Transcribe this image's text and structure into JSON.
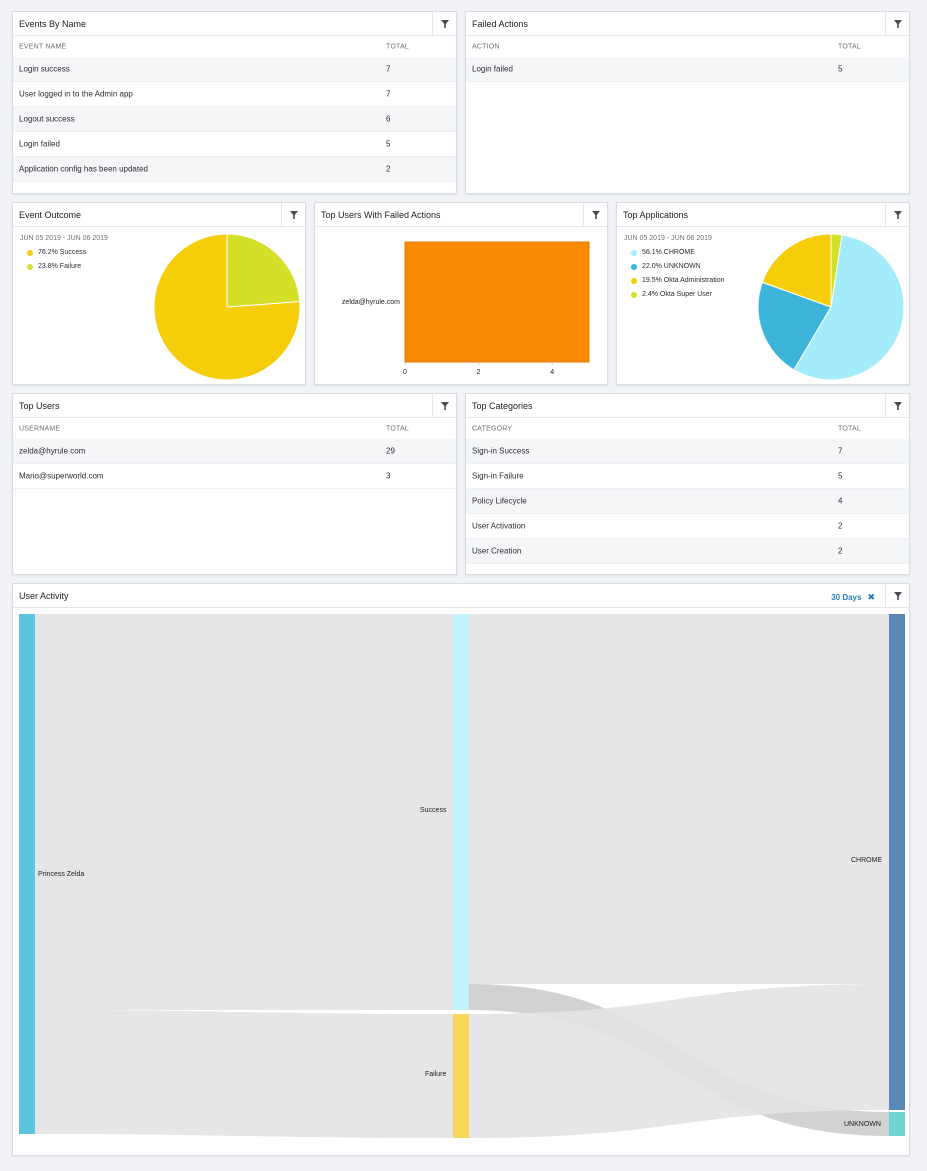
{
  "events_by_name": {
    "title": "Events By Name",
    "columns": [
      "EVENT NAME",
      "TOTAL"
    ],
    "rows": [
      {
        "name": "Login success",
        "total": "7"
      },
      {
        "name": "User logged in to the Admin app",
        "total": "7"
      },
      {
        "name": "Logout success",
        "total": "6"
      },
      {
        "name": "Login failed",
        "total": "5"
      },
      {
        "name": "Application config has been updated",
        "total": "2"
      }
    ]
  },
  "failed_actions": {
    "title": "Failed Actions",
    "columns": [
      "ACTION",
      "TOTAL"
    ],
    "rows": [
      {
        "name": "Login failed",
        "total": "5"
      }
    ]
  },
  "event_outcome": {
    "title": "Event Outcome",
    "date_range": "JUN 05 2019 - JUN 06 2019",
    "legend": [
      {
        "label": "76.2% Success",
        "color": "#f5cd08"
      },
      {
        "label": "23.8% Failure",
        "color": "#d4df28"
      }
    ],
    "chart_data": {
      "type": "pie",
      "labels": [
        "Success",
        "Failure"
      ],
      "values": [
        76.2,
        23.8
      ],
      "colors": [
        "#f5cd08",
        "#d4df28"
      ]
    }
  },
  "top_failed_users": {
    "title": "Top Users With Failed Actions",
    "chart_data": {
      "type": "bar",
      "orientation": "horizontal",
      "categories": [
        "zelda@hyrule.com"
      ],
      "values": [
        5
      ],
      "xlim": [
        0,
        5
      ],
      "xticks": [
        "0",
        "2",
        "4"
      ],
      "color": "#f78a02"
    }
  },
  "top_applications": {
    "title": "Top Applications",
    "date_range": "JUN 05 2019 - JUN 06 2019",
    "legend": [
      {
        "label": "56.1% CHROME",
        "color": "#a4ecfb"
      },
      {
        "label": "22.0% UNKNOWN",
        "color": "#3db4d9"
      },
      {
        "label": "19.5% Okta Administration",
        "color": "#f5cd08"
      },
      {
        "label": "2.4% Okta Super User",
        "color": "#d4df28"
      }
    ],
    "chart_data": {
      "type": "pie",
      "labels": [
        "CHROME",
        "UNKNOWN",
        "Okta Administration",
        "Okta Super User"
      ],
      "values": [
        56.1,
        22.0,
        19.5,
        2.4
      ],
      "colors": [
        "#a4ecfb",
        "#3db4d9",
        "#f5cd08",
        "#d4df28"
      ]
    }
  },
  "top_users": {
    "title": "Top Users",
    "columns": [
      "USERNAME",
      "TOTAL"
    ],
    "rows": [
      {
        "name": "zelda@hyrule.com",
        "total": "29"
      },
      {
        "name": "Mario@superworld.com",
        "total": "3"
      }
    ]
  },
  "top_categories": {
    "title": "Top Categories",
    "columns": [
      "CATEGORY",
      "TOTAL"
    ],
    "rows": [
      {
        "name": "Sign-in Success",
        "total": "7"
      },
      {
        "name": "Sign-in Failure",
        "total": "5"
      },
      {
        "name": "Policy Lifecycle",
        "total": "4"
      },
      {
        "name": "User Activation",
        "total": "2"
      },
      {
        "name": "User Creation",
        "total": "2"
      }
    ]
  },
  "user_activity": {
    "title": "User Activity",
    "range_label": "30 Days",
    "close_glyph": "✖",
    "nodes": {
      "user": {
        "label": "Princess Zelda",
        "color": "#5cc6e0"
      },
      "success": {
        "label": "Success",
        "color": "#c3f4fc"
      },
      "failure": {
        "label": "Failure",
        "color": "#f8d65a"
      },
      "chrome": {
        "label": "CHROME",
        "color": "#5788b6"
      },
      "unknown": {
        "label": "UNKNOWN",
        "color": "#6fd3cf"
      }
    }
  },
  "icons": {
    "filter": "filter-icon",
    "close": "close-icon"
  }
}
